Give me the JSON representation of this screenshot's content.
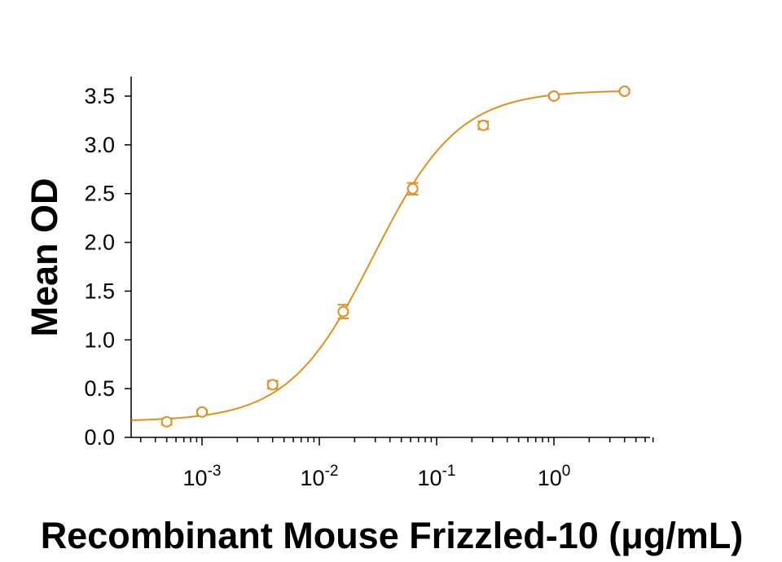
{
  "chart_data": {
    "type": "line",
    "title": "",
    "xlabel": "Recombinant Mouse Frizzled-10 (μg/mL)",
    "ylabel": "Mean OD",
    "xscale": "log",
    "xlim": [
      0.00025,
      7
    ],
    "ylim": [
      0,
      3.7
    ],
    "grid": false,
    "legend": "none",
    "color": "#e0901e",
    "y_ticks": [
      {
        "value": 0.0,
        "label": "0.0"
      },
      {
        "value": 0.5,
        "label": "0.5"
      },
      {
        "value": 1.0,
        "label": "1.0"
      },
      {
        "value": 1.5,
        "label": "1.5"
      },
      {
        "value": 2.0,
        "label": "2.0"
      },
      {
        "value": 2.5,
        "label": "2.5"
      },
      {
        "value": 3.0,
        "label": "3.0"
      },
      {
        "value": 3.5,
        "label": "3.5"
      }
    ],
    "x_ticks": [
      {
        "value": 0.001,
        "base": "10",
        "exp": "-3"
      },
      {
        "value": 0.01,
        "base": "10",
        "exp": "-2"
      },
      {
        "value": 0.1,
        "base": "10",
        "exp": "-1"
      },
      {
        "value": 1,
        "base": "10",
        "exp": "0"
      }
    ],
    "series": [
      {
        "points": [
          {
            "x": 0.0005,
            "y": 0.16,
            "err": 0.03
          },
          {
            "x": 0.001,
            "y": 0.26,
            "err": 0.02
          },
          {
            "x": 0.004,
            "y": 0.54,
            "err": 0.04
          },
          {
            "x": 0.016,
            "y": 1.29,
            "err": 0.07
          },
          {
            "x": 0.0625,
            "y": 2.55,
            "err": 0.06
          },
          {
            "x": 0.25,
            "y": 3.2,
            "err": 0.04
          },
          {
            "x": 1.0,
            "y": 3.5,
            "err": 0.02
          },
          {
            "x": 4.0,
            "y": 3.55,
            "err": 0.02
          }
        ],
        "fit": {
          "bottom": 0.165,
          "top": 3.56,
          "ec50": 0.029,
          "hill": 1.2
        }
      }
    ]
  }
}
